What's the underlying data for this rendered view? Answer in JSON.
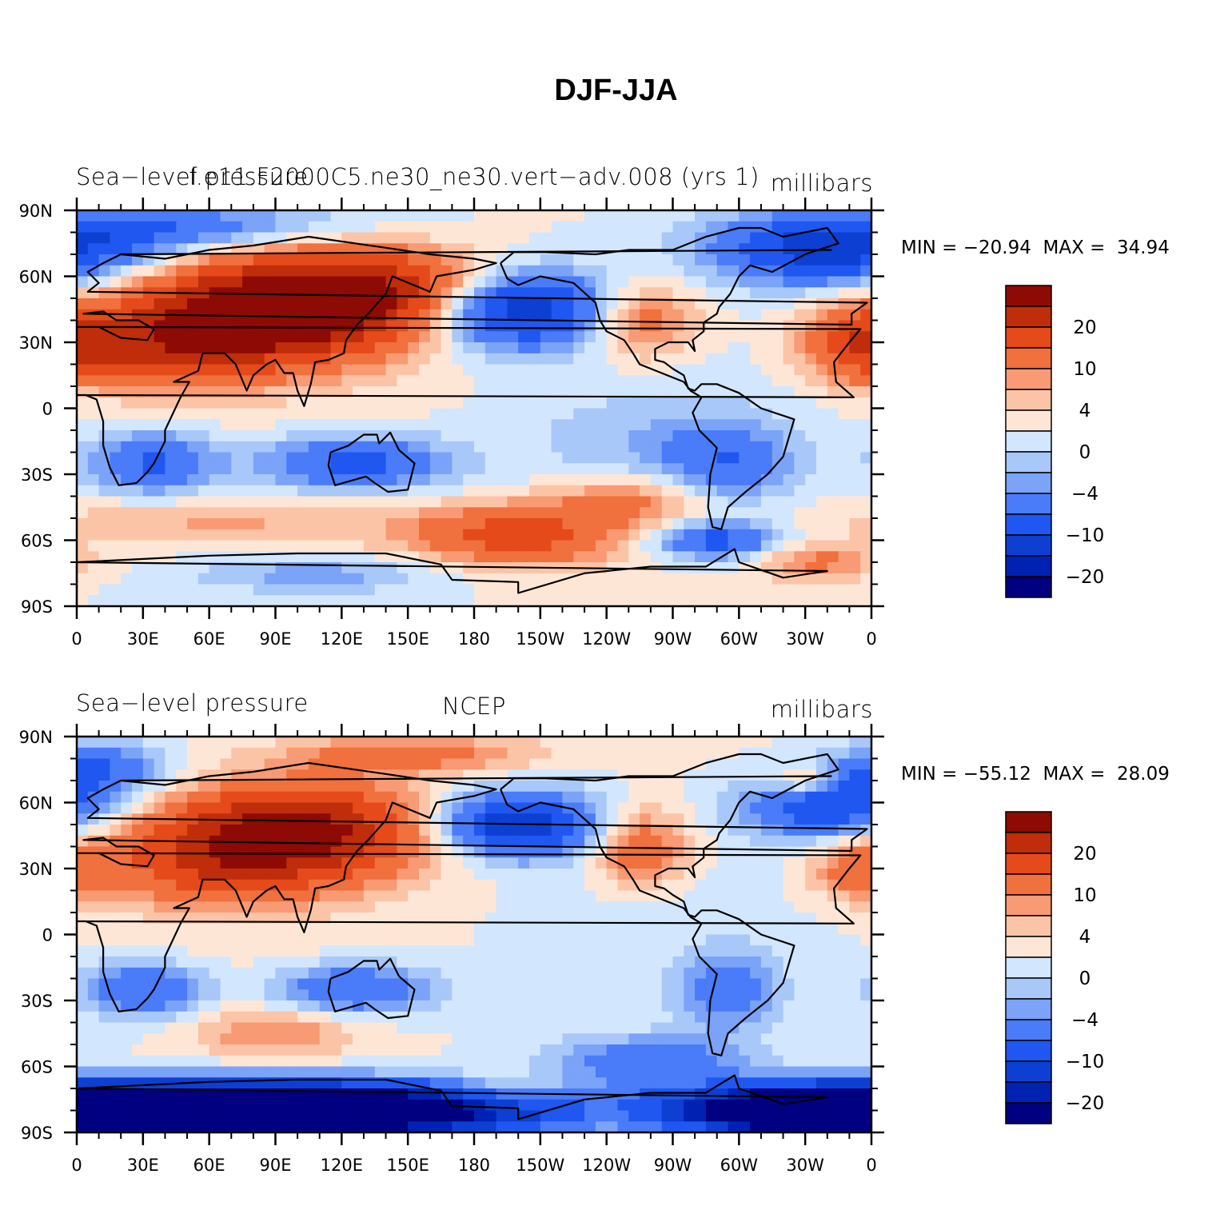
{
  "figure_title": "DJF-JJA",
  "colors": {
    "levels": [
      "#000080",
      "#0022B2",
      "#0D3FD3",
      "#1F57F0",
      "#4A7BF8",
      "#7BA3F7",
      "#A8C8FA",
      "#D2E6FD",
      "#FDE6D6",
      "#FBC4A6",
      "#F89A73",
      "#F0703E",
      "#E54A1A",
      "#C02D0A",
      "#8E0A04"
    ],
    "coast": "#000000"
  },
  "colorbar_labels": [
    "20",
    "10",
    "4",
    "0",
    "−4",
    "−10",
    "−20"
  ],
  "chart_data": [
    {
      "type": "contour-map",
      "left_string": "Sea−level pressure",
      "center_string": "f.e11.F2000C5.ne30_ne30.vert−adv.008 (yrs 1)",
      "right_string": "millibars",
      "min_label": "MIN =",
      "min_value": "−20.94",
      "max_label": "MAX =",
      "max_value": "34.94",
      "y_ticks": [
        "90N",
        "60N",
        "30N",
        "0",
        "30S",
        "60S",
        "90S"
      ],
      "x_ticks": [
        "0",
        "30E",
        "60E",
        "90E",
        "120E",
        "150E",
        "180",
        "150W",
        "120W",
        "90W",
        "60W",
        "30W",
        "0"
      ],
      "contour_levels": [
        -30,
        -25,
        -20,
        -15,
        -10,
        -6,
        -4,
        -2,
        0,
        2,
        4,
        6,
        10,
        15,
        20,
        25,
        30
      ],
      "lon_range": [
        0,
        360
      ],
      "lat_range": [
        -90,
        90
      ],
      "blobs": [
        {
          "lon": 100,
          "lat": 48,
          "amp": 25,
          "sl": 45,
          "sy": 16
        },
        {
          "lon": 60,
          "lat": 32,
          "amp": 11,
          "sl": 38,
          "sy": 14
        },
        {
          "lon": 25,
          "lat": 26,
          "amp": 6,
          "sl": 30,
          "sy": 12
        },
        {
          "lon": 150,
          "lat": 55,
          "amp": 8,
          "sl": 30,
          "sy": 12
        },
        {
          "lon": 200,
          "lat": 45,
          "amp": -20,
          "sl": 30,
          "sy": 12
        },
        {
          "lon": 255,
          "lat": 40,
          "amp": 10,
          "sl": 18,
          "sy": 12
        },
        {
          "lon": 355,
          "lat": 30,
          "amp": 10,
          "sl": 18,
          "sy": 12
        },
        {
          "lon": 340,
          "lat": 70,
          "amp": -16,
          "sl": 35,
          "sy": 10
        },
        {
          "lon": 30,
          "lat": 82,
          "amp": -10,
          "sl": 60,
          "sy": 8
        },
        {
          "lon": 35,
          "lat": -25,
          "amp": -11,
          "sl": 20,
          "sy": 10
        },
        {
          "lon": 125,
          "lat": -25,
          "amp": -12,
          "sl": 30,
          "sy": 9
        },
        {
          "lon": 295,
          "lat": -25,
          "amp": -8,
          "sl": 20,
          "sy": 12
        },
        {
          "lon": 260,
          "lat": -15,
          "amp": -3,
          "sl": 40,
          "sy": 15
        },
        {
          "lon": 200,
          "lat": -58,
          "amp": 12,
          "sl": 35,
          "sy": 10
        },
        {
          "lon": 250,
          "lat": -42,
          "amp": 7,
          "sl": 25,
          "sy": 8
        },
        {
          "lon": 290,
          "lat": -60,
          "amp": -12,
          "sl": 20,
          "sy": 6
        },
        {
          "lon": 60,
          "lat": -52,
          "amp": 4,
          "sl": 60,
          "sy": 8
        },
        {
          "lon": 335,
          "lat": -70,
          "amp": 7,
          "sl": 20,
          "sy": 6
        },
        {
          "lon": 110,
          "lat": -75,
          "amp": -5,
          "sl": 40,
          "sy": 6
        }
      ]
    },
    {
      "type": "contour-map",
      "left_string": "Sea−level pressure",
      "center_string": "NCEP",
      "right_string": "millibars",
      "min_label": "MIN =",
      "min_value": "−55.12",
      "max_label": "MAX =",
      "max_value": "28.09",
      "y_ticks": [
        "90N",
        "60N",
        "30N",
        "0",
        "30S",
        "60S",
        "90S"
      ],
      "x_ticks": [
        "0",
        "30E",
        "60E",
        "90E",
        "120E",
        "150E",
        "180",
        "150W",
        "120W",
        "90W",
        "60W",
        "30W",
        "0"
      ],
      "contour_levels": [
        -30,
        -25,
        -20,
        -15,
        -10,
        -6,
        -4,
        -2,
        0,
        2,
        4,
        6,
        10,
        15,
        20,
        25,
        30
      ],
      "lon_range": [
        0,
        360
      ],
      "lat_range": [
        -90,
        90
      ],
      "blobs": [
        {
          "lon": 100,
          "lat": 47,
          "amp": 22,
          "sl": 40,
          "sy": 15
        },
        {
          "lon": 60,
          "lat": 32,
          "amp": 10,
          "sl": 35,
          "sy": 14
        },
        {
          "lon": 150,
          "lat": 82,
          "amp": 8,
          "sl": 40,
          "sy": 6
        },
        {
          "lon": 200,
          "lat": 50,
          "amp": -20,
          "sl": 25,
          "sy": 10
        },
        {
          "lon": 255,
          "lat": 40,
          "amp": 10,
          "sl": 15,
          "sy": 12
        },
        {
          "lon": 355,
          "lat": 30,
          "amp": 8,
          "sl": 15,
          "sy": 10
        },
        {
          "lon": 330,
          "lat": 70,
          "amp": 8,
          "sl": 10,
          "sy": 5
        },
        {
          "lon": 340,
          "lat": 58,
          "amp": -14,
          "sl": 25,
          "sy": 10
        },
        {
          "lon": 10,
          "lat": 75,
          "amp": -10,
          "sl": 20,
          "sy": 8
        },
        {
          "lon": 30,
          "lat": -25,
          "amp": -10,
          "sl": 20,
          "sy": 9
        },
        {
          "lon": 125,
          "lat": -25,
          "amp": -11,
          "sl": 25,
          "sy": 8
        },
        {
          "lon": 295,
          "lat": -25,
          "amp": -9,
          "sl": 15,
          "sy": 12
        },
        {
          "lon": 90,
          "lat": -45,
          "amp": 6,
          "sl": 25,
          "sy": 8
        },
        {
          "lon": 195,
          "lat": -72,
          "amp": 5,
          "sl": 20,
          "sy": 6
        },
        {
          "lon": 260,
          "lat": -58,
          "amp": -9,
          "sl": 30,
          "sy": 8
        },
        {
          "lon": 60,
          "lat": -80,
          "amp": -65,
          "sl": 90,
          "sy": 8
        },
        {
          "lon": 340,
          "lat": -80,
          "amp": -25,
          "sl": 30,
          "sy": 6
        }
      ]
    }
  ]
}
